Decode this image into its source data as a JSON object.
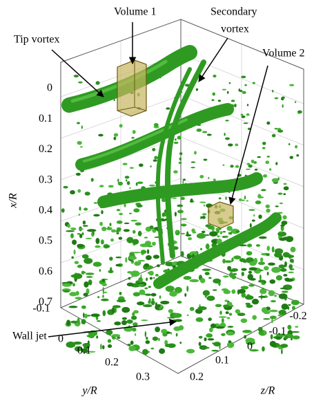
{
  "figure": {
    "annotations": {
      "tip_vortex": "Tip vortex",
      "volume_1": "Volume 1",
      "secondary": "Secondary",
      "secondary_2": "vortex",
      "volume_2": "Volume 2",
      "wall_jet": "Wall jet"
    },
    "x_axis": {
      "label": "x/R",
      "ticks": [
        "0",
        "0.1",
        "0.2",
        "0.3",
        "0.4",
        "0.5",
        "0.6",
        "0.7"
      ]
    },
    "y_axis": {
      "label": "y/R",
      "ticks": [
        "-0.1",
        "0",
        "0.1",
        "0.2",
        "0.3"
      ]
    },
    "z_axis": {
      "label": "z/R",
      "ticks": [
        "-0.2",
        "-0.1",
        "0",
        "0.1",
        "0.2"
      ]
    }
  }
}
